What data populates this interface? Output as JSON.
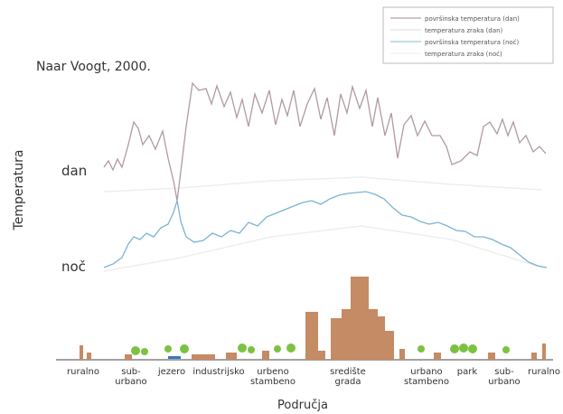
{
  "title": "Naar Voogt, 2000.",
  "legend": [
    "površinska temperatura (dan)",
    "temperatura zraka (dan)",
    "površinska temperatura (noć)",
    "temperatura zraka (noć)"
  ],
  "curve_labels": {
    "day": "dan",
    "night": "noč"
  },
  "y_axis_title": "Temperatura",
  "x_axis_title": "Područja",
  "regions": [
    [
      "ruralno"
    ],
    [
      "sub-",
      "urbano"
    ],
    [
      "jezero"
    ],
    [
      "industrijsko"
    ],
    [
      "urbeno",
      "stambeno"
    ],
    [
      "središte",
      "grada"
    ],
    [
      "urbano",
      "stambeno"
    ],
    [
      "park"
    ],
    [
      "sub-",
      "urbano"
    ],
    [
      "ruralno"
    ]
  ]
}
